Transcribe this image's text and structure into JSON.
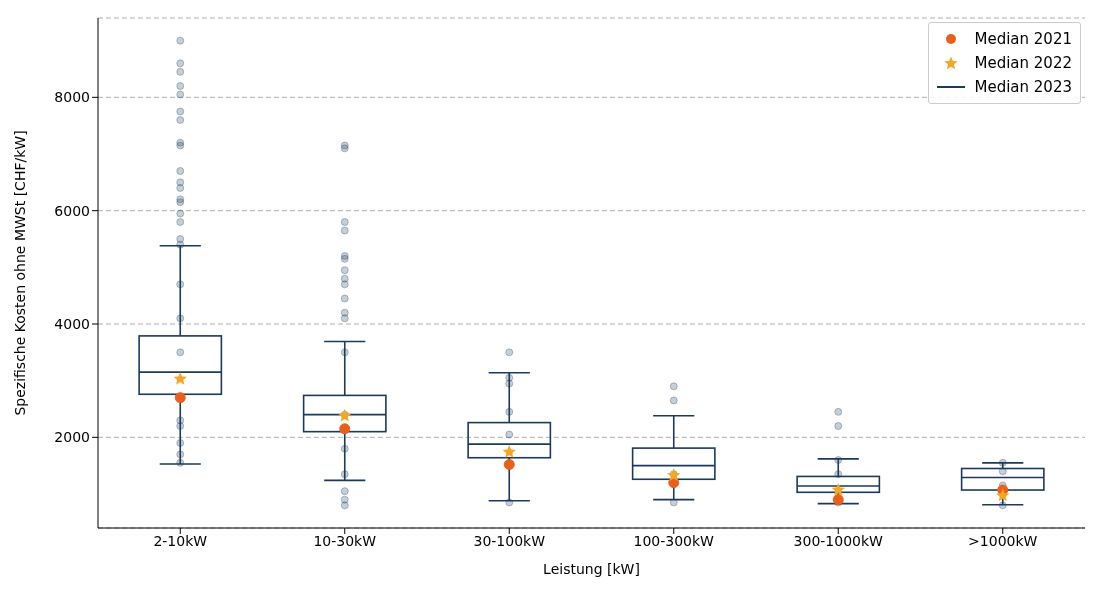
{
  "chart_data": {
    "type": "box",
    "xlabel": "Leistung [kW]",
    "ylabel": "Spezifische Kosten ohne MWSt [CHF/kW]",
    "categories": [
      "2-10kW",
      "10-30kW",
      "30-100kW",
      "100-300kW",
      "300-1000kW",
      ">1000kW"
    ],
    "ylim": [
      400,
      9400
    ],
    "yticks": [
      2000,
      4000,
      6000,
      8000
    ],
    "grid": "y",
    "legend": "top right",
    "series": [
      {
        "type": "scatter",
        "color": "#1b3a5c",
        "marker": "circle",
        "x": [
          "2-10kW",
          "2-10kW",
          "2-10kW",
          "2-10kW",
          "2-10kW",
          "2-10kW",
          "2-10kW",
          "2-10kW",
          "2-10kW",
          "2-10kW",
          "2-10kW",
          "2-10kW",
          "2-10kW",
          "2-10kW",
          "2-10kW",
          "2-10kW",
          "2-10kW",
          "2-10kW",
          "2-10kW",
          "2-10kW",
          "2-10kW",
          "2-10kW",
          "2-10kW",
          "2-10kW",
          "2-10kW",
          "2-10kW",
          "10-30kW",
          "10-30kW",
          "10-30kW",
          "10-30kW",
          "10-30kW",
          "10-30kW",
          "10-30kW",
          "10-30kW",
          "10-30kW",
          "10-30kW",
          "10-30kW",
          "10-30kW",
          "10-30kW",
          "10-30kW",
          "10-30kW",
          "10-30kW",
          "10-30kW",
          "10-30kW",
          "10-30kW",
          "30-100kW",
          "30-100kW",
          "30-100kW",
          "30-100kW",
          "30-100kW",
          "30-100kW",
          "100-300kW",
          "100-300kW",
          "100-300kW",
          "100-300kW",
          "300-1000kW",
          "300-1000kW",
          "300-1000kW",
          "300-1000kW",
          "300-1000kW",
          ">1000kW",
          ">1000kW",
          ">1000kW",
          ">1000kW"
        ],
        "values": [
          9000,
          8600,
          8450,
          8200,
          8050,
          7750,
          7600,
          7200,
          7150,
          6700,
          6500,
          6400,
          6150,
          6200,
          5950,
          5800,
          5500,
          5400,
          4700,
          4100,
          3500,
          2200,
          2300,
          1900,
          1700,
          1550,
          7150,
          7100,
          5800,
          5650,
          5200,
          5150,
          4950,
          4800,
          4700,
          4450,
          4200,
          4100,
          3500,
          2400,
          1800,
          1350,
          1050,
          900,
          800,
          3500,
          3050,
          2950,
          2450,
          2050,
          850,
          2900,
          2650,
          1350,
          850,
          2450,
          2200,
          1600,
          1350,
          850,
          1550,
          1400,
          1150,
          800
        ]
      },
      {
        "name": "Median 2021",
        "type": "scatter",
        "color": "#e8601c",
        "marker": "circle",
        "x": [
          "2-10kW",
          "10-30kW",
          "30-100kW",
          "100-300kW",
          "300-1000kW",
          ">1000kW"
        ],
        "values": [
          2700,
          2150,
          1520,
          1200,
          900,
          1070
        ]
      },
      {
        "name": "Median 2022",
        "type": "scatter",
        "color": "#f5a623",
        "marker": "star",
        "x": [
          "2-10kW",
          "10-30kW",
          "30-100kW",
          "100-300kW",
          "300-1000kW",
          ">1000kW"
        ],
        "values": [
          3030,
          2380,
          1740,
          1330,
          1070,
          970
        ]
      },
      {
        "name": "Median 2023",
        "color": "#1b3a5c",
        "boxes": [
          {
            "low": 1530,
            "q1": 2760,
            "median": 3150,
            "q3": 3790,
            "high": 5380
          },
          {
            "low": 1240,
            "q1": 2100,
            "median": 2400,
            "q3": 2740,
            "high": 3690
          },
          {
            "low": 880,
            "q1": 1640,
            "median": 1880,
            "q3": 2260,
            "high": 3140
          },
          {
            "low": 900,
            "q1": 1260,
            "median": 1500,
            "q3": 1810,
            "high": 2380
          },
          {
            "low": 830,
            "q1": 1030,
            "median": 1140,
            "q3": 1310,
            "high": 1620
          },
          {
            "low": 810,
            "q1": 1070,
            "median": 1290,
            "q3": 1450,
            "high": 1550
          }
        ]
      }
    ]
  }
}
